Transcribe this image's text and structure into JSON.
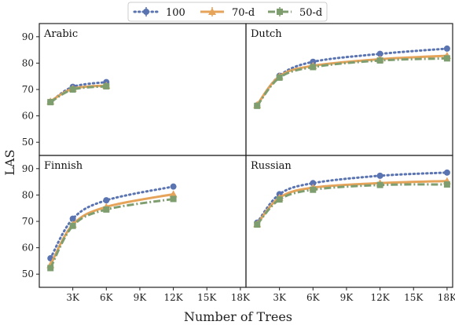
{
  "chart_data": {
    "type": "line",
    "ylabel": "LAS",
    "xlabel": "Number of Trees",
    "xlim": [
      0,
      18500
    ],
    "ylim": [
      45,
      95
    ],
    "x_ticks": [
      3000,
      6000,
      9000,
      12000,
      15000,
      18000
    ],
    "x_tick_labels": [
      "3K",
      "6K",
      "9K",
      "12K",
      "15K",
      "18K"
    ],
    "y_ticks": [
      50,
      60,
      70,
      80,
      90
    ],
    "y_tick_labels": [
      "50",
      "60",
      "70",
      "80",
      "90"
    ],
    "legend": {
      "placement": "top-center",
      "entries": [
        {
          "name": "100",
          "color": "#5a74b2",
          "marker": "circle",
          "dash": "dotted"
        },
        {
          "name": "70-d",
          "color": "#e6a35a",
          "marker": "triangle",
          "dash": "solid"
        },
        {
          "name": "50-d",
          "color": "#7f9e6f",
          "marker": "square",
          "dash": "dashdot"
        }
      ]
    },
    "panels": [
      {
        "title": "Arabic",
        "series": [
          {
            "name": "100",
            "x": [
              1000,
              3000,
              6000
            ],
            "y": [
              65.3,
              71.0,
              72.8
            ]
          },
          {
            "name": "70-d",
            "x": [
              1000,
              3000,
              6000
            ],
            "y": [
              65.5,
              70.3,
              71.5
            ]
          },
          {
            "name": "50-d",
            "x": [
              1000,
              3000,
              6000
            ],
            "y": [
              65.2,
              70.0,
              71.2
            ]
          }
        ]
      },
      {
        "title": "Dutch",
        "series": [
          {
            "name": "100",
            "x": [
              1000,
              3000,
              6000,
              12000,
              18000
            ],
            "y": [
              64.0,
              75.2,
              80.5,
              83.5,
              85.5
            ]
          },
          {
            "name": "70-d",
            "x": [
              1000,
              3000,
              6000,
              12000,
              18000
            ],
            "y": [
              64.2,
              75.0,
              79.0,
              81.5,
              82.8
            ]
          },
          {
            "name": "50-d",
            "x": [
              1000,
              3000,
              6000,
              12000,
              18000
            ],
            "y": [
              63.8,
              74.5,
              78.5,
              81.0,
              81.8
            ]
          }
        ]
      },
      {
        "title": "Finnish",
        "series": [
          {
            "name": "100",
            "x": [
              1000,
              3000,
              6000,
              12000
            ],
            "y": [
              56.0,
              71.0,
              78.0,
              83.2
            ]
          },
          {
            "name": "70-d",
            "x": [
              1000,
              3000,
              6000,
              12000
            ],
            "y": [
              53.5,
              68.8,
              75.5,
              80.3
            ]
          },
          {
            "name": "50-d",
            "x": [
              1000,
              3000,
              6000,
              12000
            ],
            "y": [
              52.3,
              68.3,
              74.5,
              78.5
            ]
          }
        ]
      },
      {
        "title": "Russian",
        "series": [
          {
            "name": "100",
            "x": [
              1000,
              3000,
              6000,
              12000,
              18000
            ],
            "y": [
              69.5,
              80.3,
              84.5,
              87.3,
              88.5
            ]
          },
          {
            "name": "70-d",
            "x": [
              1000,
              3000,
              6000,
              12000,
              18000
            ],
            "y": [
              69.0,
              79.0,
              82.8,
              84.5,
              85.3
            ]
          },
          {
            "name": "50-d",
            "x": [
              1000,
              3000,
              6000,
              12000,
              18000
            ],
            "y": [
              68.8,
              78.3,
              82.0,
              83.8,
              84.0
            ]
          }
        ]
      }
    ]
  }
}
